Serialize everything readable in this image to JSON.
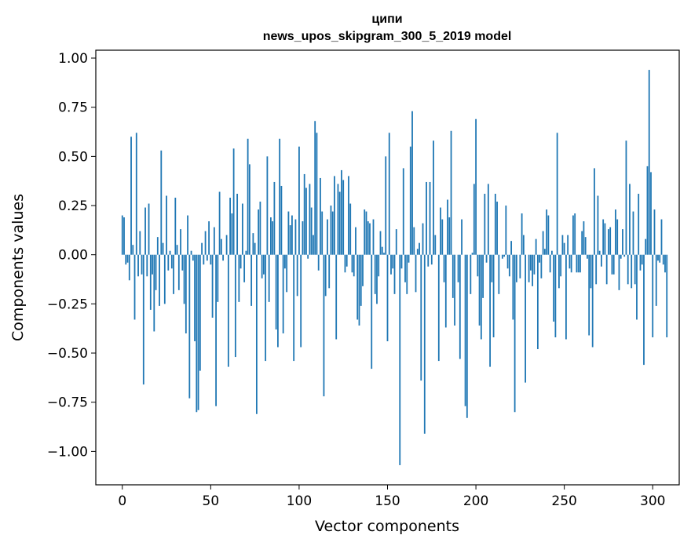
{
  "chart_data": {
    "type": "bar",
    "title": "ципи",
    "subtitle": "news_upos_skipgram_300_5_2019 model",
    "xlabel": "Vector components",
    "ylabel": "Components values",
    "xlim": [
      -15,
      315
    ],
    "ylim": [
      -1.17,
      1.04
    ],
    "xticks": [
      0,
      50,
      100,
      150,
      200,
      250,
      300
    ],
    "xtick_labels": [
      "0",
      "50",
      "100",
      "150",
      "200",
      "250",
      "300"
    ],
    "yticks": [
      1.0,
      0.75,
      0.5,
      0.25,
      0.0,
      -0.25,
      -0.5,
      -0.75,
      -1.0
    ],
    "ytick_labels": [
      "1.00",
      "0.75",
      "0.50",
      "0.25",
      "0.00",
      "−0.25",
      "−0.50",
      "−0.75",
      "−1.00"
    ],
    "bar_color": "#1f77b4",
    "grid": false,
    "legend": "none",
    "values": [
      0.2,
      0.19,
      -0.05,
      -0.04,
      -0.13,
      0.6,
      0.05,
      -0.33,
      0.62,
      -0.11,
      0.12,
      -0.1,
      -0.66,
      0.24,
      -0.11,
      0.26,
      -0.28,
      -0.1,
      -0.39,
      -0.18,
      0.09,
      -0.26,
      0.53,
      0.06,
      -0.25,
      0.3,
      -0.08,
      0.02,
      -0.07,
      -0.2,
      0.29,
      0.05,
      -0.18,
      0.13,
      -0.08,
      -0.25,
      -0.4,
      0.2,
      -0.73,
      0.02,
      -0.03,
      -0.44,
      -0.8,
      -0.79,
      -0.59,
      0.06,
      -0.05,
      0.12,
      -0.03,
      0.17,
      -0.05,
      -0.32,
      0.14,
      -0.77,
      -0.24,
      0.32,
      0.08,
      -0.03,
      0.0,
      0.1,
      -0.57,
      0.29,
      0.21,
      0.54,
      -0.52,
      0.31,
      -0.24,
      -0.07,
      0.26,
      -0.14,
      0.02,
      0.59,
      0.46,
      -0.26,
      0.11,
      0.06,
      -0.81,
      0.23,
      0.27,
      -0.12,
      -0.1,
      -0.54,
      0.5,
      -0.24,
      0.19,
      0.17,
      0.37,
      -0.38,
      -0.47,
      0.59,
      0.35,
      -0.4,
      -0.07,
      -0.19,
      0.22,
      0.15,
      0.2,
      -0.54,
      0.18,
      -0.21,
      0.55,
      -0.47,
      0.17,
      0.41,
      0.34,
      -0.02,
      0.36,
      0.24,
      0.1,
      0.68,
      0.62,
      -0.08,
      0.39,
      0.22,
      -0.72,
      -0.21,
      0.18,
      -0.17,
      0.25,
      0.22,
      0.4,
      -0.43,
      0.36,
      0.32,
      0.43,
      0.38,
      -0.09,
      -0.06,
      0.4,
      0.26,
      -0.09,
      -0.11,
      0.14,
      -0.33,
      -0.36,
      -0.26,
      -0.16,
      0.23,
      0.22,
      0.17,
      0.16,
      -0.58,
      0.18,
      -0.2,
      -0.25,
      -0.11,
      0.12,
      0.04,
      0.01,
      0.5,
      -0.44,
      0.62,
      -0.1,
      -0.07,
      -0.2,
      0.13,
      0.0,
      -1.07,
      -0.07,
      0.44,
      -0.14,
      -0.2,
      -0.04,
      0.55,
      0.73,
      0.14,
      -0.19,
      0.03,
      0.06,
      -0.64,
      0.16,
      -0.91,
      0.37,
      -0.06,
      0.37,
      -0.05,
      0.58,
      0.1,
      0.0,
      -0.54,
      0.24,
      0.18,
      -0.14,
      -0.37,
      0.28,
      0.19,
      0.63,
      -0.22,
      -0.36,
      0.0,
      -0.14,
      -0.53,
      0.18,
      0.0,
      -0.77,
      -0.83,
      0.0,
      -0.2,
      0.01,
      0.36,
      0.69,
      -0.11,
      -0.36,
      -0.43,
      -0.22,
      0.31,
      -0.04,
      0.36,
      -0.57,
      -0.14,
      -0.42,
      0.31,
      0.27,
      -0.2,
      0.0,
      -0.02,
      -0.01,
      0.25,
      -0.07,
      -0.11,
      0.07,
      -0.33,
      -0.8,
      -0.14,
      0.0,
      -0.12,
      0.21,
      0.1,
      -0.65,
      0.0,
      -0.14,
      -0.08,
      -0.16,
      -0.1,
      0.08,
      -0.48,
      -0.04,
      -0.12,
      0.12,
      0.03,
      0.23,
      0.2,
      -0.09,
      0.02,
      -0.34,
      -0.42,
      0.62,
      -0.17,
      -0.11,
      0.1,
      0.06,
      -0.43,
      0.1,
      -0.07,
      -0.09,
      0.2,
      0.21,
      -0.09,
      -0.09,
      -0.09,
      0.12,
      0.17,
      0.09,
      -0.02,
      -0.41,
      -0.17,
      -0.47,
      0.44,
      -0.15,
      0.3,
      0.02,
      -0.06,
      0.18,
      0.16,
      -0.15,
      0.13,
      0.14,
      -0.1,
      -0.1,
      0.23,
      0.18,
      -0.18,
      -0.02,
      0.13,
      -0.01,
      0.58,
      -0.15,
      0.36,
      -0.17,
      0.22,
      -0.15,
      -0.33,
      0.31,
      -0.08,
      -0.05,
      -0.56,
      0.08,
      0.45,
      0.94,
      0.42,
      -0.42,
      0.23,
      -0.26,
      -0.03,
      -0.04,
      0.18,
      -0.05,
      -0.09,
      -0.42
    ]
  }
}
